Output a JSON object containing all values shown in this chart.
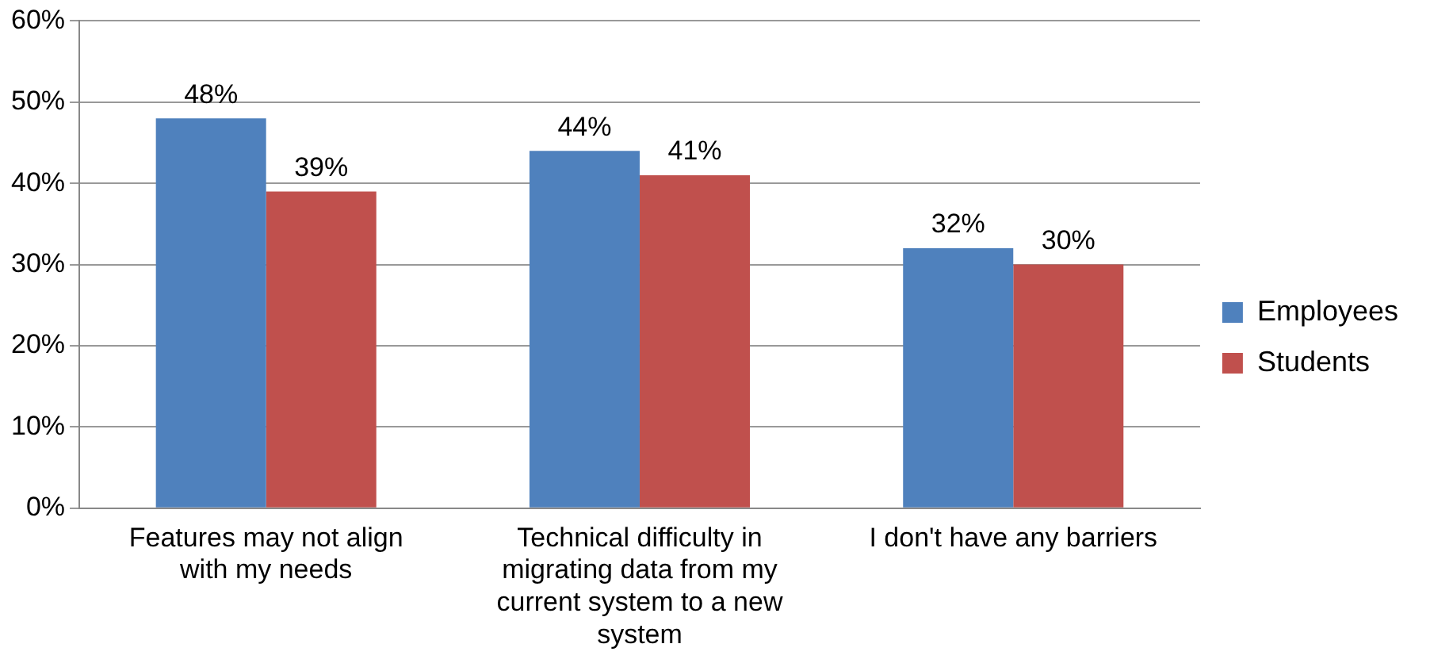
{
  "chart_data": {
    "type": "bar",
    "categories": [
      "Features may not align with my needs",
      "Technical difficulty in migrating data from my current system to a new system",
      "I don't have any barriers"
    ],
    "series": [
      {
        "name": "Employees",
        "color": "#4f81bd",
        "values": [
          48,
          44,
          32
        ],
        "value_labels": [
          "48%",
          "44%",
          "32%"
        ]
      },
      {
        "name": "Students",
        "color": "#c0504d",
        "values": [
          39,
          41,
          30
        ],
        "value_labels": [
          "39%",
          "41%",
          "30%"
        ]
      }
    ],
    "ylim": [
      0,
      60
    ],
    "yticks": [
      {
        "value": 0,
        "label": "0%"
      },
      {
        "value": 10,
        "label": "10%"
      },
      {
        "value": 20,
        "label": "20%"
      },
      {
        "value": 30,
        "label": "30%"
      },
      {
        "value": 40,
        "label": "40%"
      },
      {
        "value": 50,
        "label": "50%"
      },
      {
        "value": 60,
        "label": "60%"
      }
    ],
    "grid": "y",
    "legend": "right"
  }
}
